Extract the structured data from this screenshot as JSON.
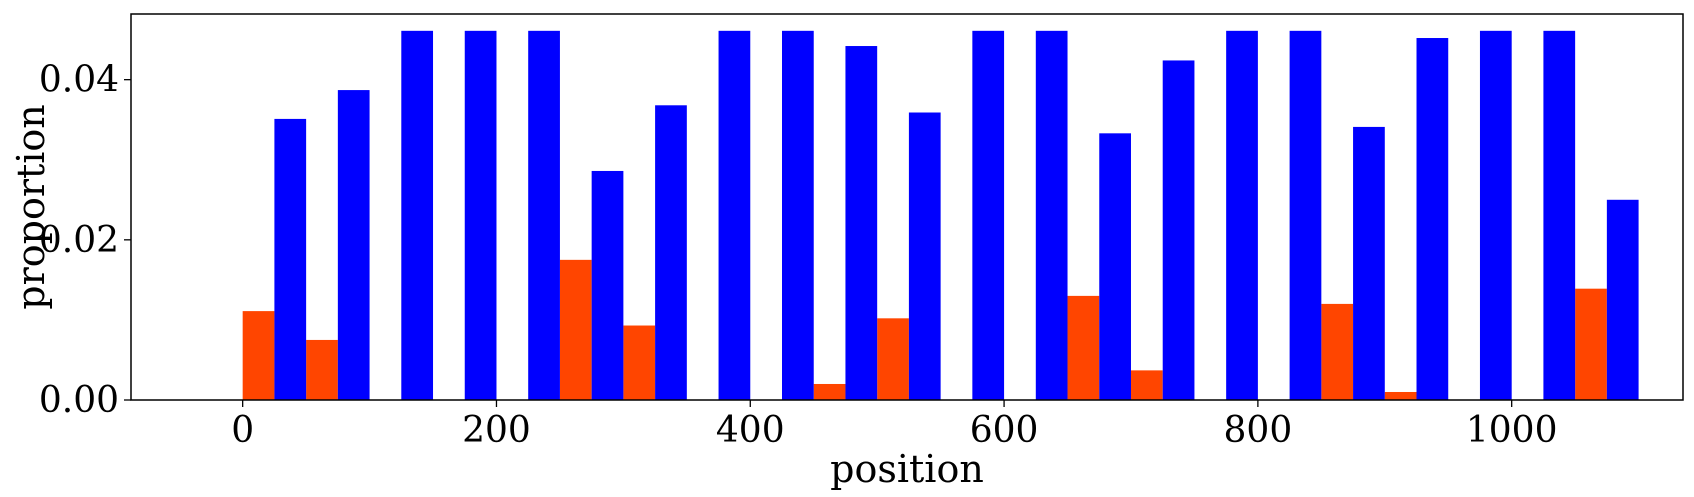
{
  "chart_data": {
    "type": "bar",
    "xlabel": "position",
    "ylabel": "proportion",
    "xlim": [
      -88,
      1135
    ],
    "ylim": [
      0,
      0.0482
    ],
    "xticks": [
      {
        "value": 0,
        "label": "0"
      },
      {
        "value": 200,
        "label": "200"
      },
      {
        "value": 400,
        "label": "400"
      },
      {
        "value": 600,
        "label": "600"
      },
      {
        "value": 800,
        "label": "800"
      },
      {
        "value": 1000,
        "label": "1000"
      }
    ],
    "yticks": [
      {
        "value": 0.0,
        "label": "0.00"
      },
      {
        "value": 0.02,
        "label": "0.02"
      },
      {
        "value": 0.04,
        "label": "0.04"
      }
    ],
    "bar_width": 25,
    "grid": false,
    "legend": "none",
    "series": [
      {
        "color": "#ff4500",
        "x": [
          0,
          50,
          250,
          300,
          450,
          500,
          650,
          700,
          850,
          900,
          1050
        ],
        "values": [
          0.0111,
          0.0075,
          0.0175,
          0.0093,
          0.002,
          0.0102,
          0.013,
          0.0037,
          0.012,
          0.001,
          0.0139
        ]
      },
      {
        "color": "#0000ff",
        "x": [
          25,
          75,
          125,
          175,
          225,
          275,
          325,
          375,
          425,
          475,
          525,
          575,
          625,
          675,
          725,
          775,
          825,
          875,
          925,
          975,
          1025,
          1075
        ],
        "values": [
          0.0351,
          0.0387,
          0.0461,
          0.0461,
          0.0461,
          0.0286,
          0.0368,
          0.0461,
          0.0461,
          0.0442,
          0.0359,
          0.0461,
          0.0461,
          0.0333,
          0.0424,
          0.0461,
          0.0461,
          0.0341,
          0.0452,
          0.0461,
          0.0461,
          0.025
        ]
      }
    ]
  }
}
